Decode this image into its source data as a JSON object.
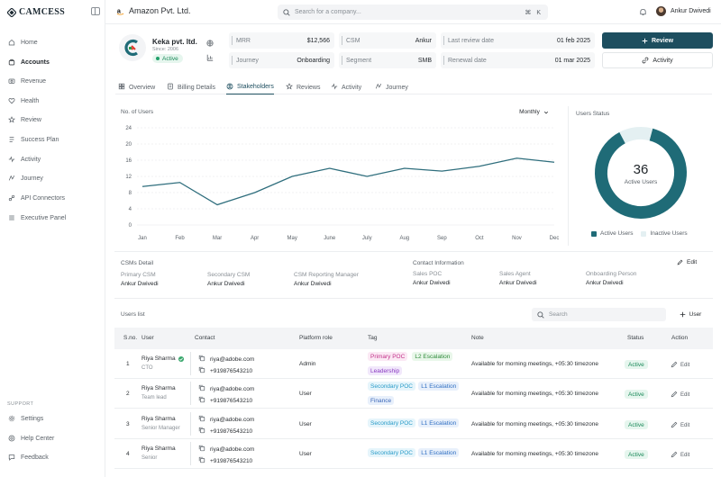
{
  "brand": {
    "name": "CAMCESS"
  },
  "sidebar": {
    "items": [
      {
        "label": "Home",
        "icon": "home-icon"
      },
      {
        "label": "Accounts",
        "icon": "accounts-icon",
        "active": true
      },
      {
        "label": "Revenue",
        "icon": "revenue-icon"
      },
      {
        "label": "Health",
        "icon": "health-icon"
      },
      {
        "label": "Review",
        "icon": "star-icon"
      },
      {
        "label": "Success Plan",
        "icon": "plan-icon"
      },
      {
        "label": "Activity",
        "icon": "activity-icon"
      },
      {
        "label": "Journey",
        "icon": "journey-icon"
      },
      {
        "label": "API Connectors",
        "icon": "api-icon"
      },
      {
        "label": "Executive Panel",
        "icon": "panel-icon"
      }
    ],
    "support_label": "SUPPORT",
    "support_items": [
      {
        "label": "Settings",
        "icon": "gear-icon"
      },
      {
        "label": "Help Center",
        "icon": "help-icon"
      },
      {
        "label": "Feedback",
        "icon": "feedback-icon"
      }
    ]
  },
  "topbar": {
    "company": "Amazon Pvt. Ltd.",
    "search_placeholder": "Search for a company...",
    "shortcut": "⌘ K",
    "user_name": "Ankur Dwivedi"
  },
  "account": {
    "name": "Keka pvt. ltd.",
    "since": "Since: 2006",
    "status": "Active"
  },
  "kpis": [
    {
      "label": "MRR",
      "value": "$12,566"
    },
    {
      "label": "CSM",
      "value": "Ankur"
    },
    {
      "label": "Last review date",
      "value": "01 feb 2025"
    },
    {
      "label": "Journey",
      "value": "Onboarding"
    },
    {
      "label": "Segment",
      "value": "SMB"
    },
    {
      "label": "Renewal date",
      "value": "01 mar 2025"
    }
  ],
  "actions": {
    "review": "Review",
    "activity": "Activity"
  },
  "tabs": [
    {
      "label": "Overview",
      "icon": "grid-icon"
    },
    {
      "label": "Billing Details",
      "icon": "billing-icon"
    },
    {
      "label": "Stakeholders",
      "icon": "stakeholders-icon",
      "active": true
    },
    {
      "label": "Reviews",
      "icon": "star-icon"
    },
    {
      "label": "Activity",
      "icon": "activity-icon"
    },
    {
      "label": "Journey",
      "icon": "journey-icon"
    }
  ],
  "chart_data": [
    {
      "type": "line",
      "ylabel": "No. of Users",
      "period": "Monthly",
      "categories": [
        "Jan",
        "Feb",
        "Mar",
        "Apr",
        "May",
        "June",
        "July",
        "Aug",
        "Sep",
        "Oct",
        "Nov",
        "Dec"
      ],
      "values": [
        9.5,
        10.5,
        5,
        8,
        12,
        14,
        12,
        14,
        13.3,
        14.5,
        16.5,
        15.5
      ],
      "yticks": [
        0,
        4,
        8,
        12,
        16,
        20,
        24
      ],
      "ylim": [
        0,
        24
      ],
      "grid": true,
      "color": "#2f6e7d"
    },
    {
      "type": "pie",
      "title": "Users Status",
      "center_value": "36",
      "center_label": "Active Users",
      "series": [
        {
          "name": "Active Users",
          "value": 0.88,
          "color": "#1f6b77"
        },
        {
          "name": "Inactive Users",
          "value": 0.12,
          "color": "#e4f0f2"
        }
      ]
    }
  ],
  "csm_detail": {
    "title": "CSMs Detail",
    "fields": [
      {
        "label": "Primary CSM",
        "value": "Ankur Dwivedi"
      },
      {
        "label": "Secondary CSM",
        "value": "Ankur Dwivedi"
      },
      {
        "label": "CSM Reporting Manager",
        "value": "Ankur Dwivedi"
      }
    ]
  },
  "contact_info": {
    "title": "Contact Information",
    "edit": "Edit",
    "fields": [
      {
        "label": "Sales POC",
        "value": "Ankur Dwivedi"
      },
      {
        "label": "Sales Agent",
        "value": "Ankur Dwivedi"
      },
      {
        "label": "Onboarding Person",
        "value": "Ankur Dwivedi"
      }
    ]
  },
  "users": {
    "title": "Users list",
    "search_placeholder": "Search",
    "add_label": "User",
    "columns": [
      "S.no.",
      "User",
      "Contact",
      "Platform role",
      "Tag",
      "Note",
      "Status",
      "Action"
    ],
    "rows": [
      {
        "sno": "1",
        "name": "Riya Sharma",
        "role_title": "CTO",
        "email": "riya@adobe.com",
        "phone": "+919876543210",
        "platform_role": "Admin",
        "tags": [
          {
            "label": "Primary POC",
            "kind": "t-primary"
          },
          {
            "label": "L2 Escalation",
            "kind": "t-l2"
          },
          {
            "label": "Leadership",
            "kind": "t-lead"
          }
        ],
        "note": "Available for morning meetings, +05:30 timezone",
        "status": "Active",
        "action": "Edit"
      },
      {
        "sno": "2",
        "name": "Riya Sharma",
        "role_title": "Team lead",
        "email": "riya@adobe.com",
        "phone": "+919876543210",
        "platform_role": "User",
        "tags": [
          {
            "label": "Secondary POC",
            "kind": "t-sec"
          },
          {
            "label": "L1 Escalation",
            "kind": "t-l1"
          },
          {
            "label": "Finance",
            "kind": "t-fin"
          }
        ],
        "note": "Available for morning meetings, +05:30 timezone",
        "status": "Active",
        "action": "Edit"
      },
      {
        "sno": "3",
        "name": "Riya Sharma",
        "role_title": "Senior Manager",
        "email": "riya@adobe.com",
        "phone": "+919876543210",
        "platform_role": "User",
        "tags": [
          {
            "label": "Secondary POC",
            "kind": "t-sec"
          },
          {
            "label": "L1 Escalation",
            "kind": "t-l1"
          }
        ],
        "note": "Available for morning meetings, +05:30 timezone",
        "status": "Active",
        "action": "Edit"
      },
      {
        "sno": "4",
        "name": "Riya Sharma",
        "role_title": "Senior",
        "email": "riya@adobe.com",
        "phone": "+919876543210",
        "platform_role": "User",
        "tags": [
          {
            "label": "Secondary POC",
            "kind": "t-sec"
          },
          {
            "label": "L1 Escalation",
            "kind": "t-l1"
          }
        ],
        "note": "Available for morning meetings, +05:30 timezone",
        "status": "Active",
        "action": "Edit"
      }
    ]
  }
}
